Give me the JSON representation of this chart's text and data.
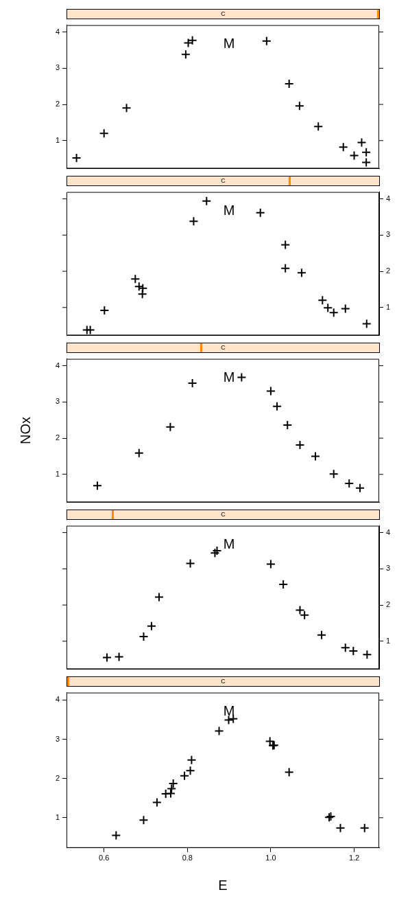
{
  "chart_data": [
    {
      "type": "scatter",
      "title": "C",
      "x": [
        0.534,
        0.6,
        0.654,
        0.796,
        0.802,
        0.812,
        0.99,
        1.044,
        1.069,
        1.114,
        1.174,
        1.2,
        1.218,
        1.229,
        1.229
      ],
      "values": [
        0.52,
        1.2,
        1.9,
        3.38,
        3.7,
        3.77,
        3.75,
        2.57,
        1.96,
        1.39,
        0.82,
        0.59,
        0.95,
        0.68,
        0.4
      ],
      "color": "#000000",
      "marker": "cross",
      "xlim": [
        0.51,
        1.26
      ],
      "ylim": [
        0.23,
        4.19
      ],
      "yticks": [
        1,
        2,
        3,
        4
      ],
      "tick_labels": "y",
      "grid": false,
      "legend": false,
      "annotations": [
        "M"
      ]
    },
    {
      "type": "scatter",
      "title": "C",
      "x": [
        0.559,
        0.567,
        0.601,
        0.675,
        0.684,
        0.693,
        0.692,
        0.815,
        0.846,
        0.975,
        1.035,
        1.035,
        1.074,
        1.124,
        1.137,
        1.151,
        1.179,
        1.23
      ],
      "values": [
        0.38,
        0.38,
        0.92,
        1.79,
        1.58,
        1.53,
        1.37,
        3.38,
        3.94,
        3.62,
        2.73,
        2.08,
        1.96,
        1.2,
        0.99,
        0.86,
        0.97,
        0.55
      ],
      "color": "#000000",
      "marker": "cross",
      "xlim": [
        0.51,
        1.26
      ],
      "ylim": [
        0.23,
        4.19
      ],
      "yticks": [
        1,
        2,
        3,
        4
      ],
      "tick_labels": "y",
      "grid": false,
      "legend": false,
      "annotations": [
        "M"
      ]
    },
    {
      "type": "scatter",
      "title": "C",
      "ylabel": "NOx",
      "x": [
        0.584,
        0.684,
        0.759,
        0.812,
        0.93,
        1.0,
        1.015,
        1.04,
        1.07,
        1.107,
        1.151,
        1.188,
        1.214
      ],
      "values": [
        0.69,
        1.59,
        2.31,
        3.52,
        3.68,
        3.3,
        2.88,
        2.36,
        1.81,
        1.5,
        1.01,
        0.75,
        0.62
      ],
      "color": "#000000",
      "marker": "cross",
      "xlim": [
        0.51,
        1.26
      ],
      "ylim": [
        0.23,
        4.19
      ],
      "yticks": [
        1,
        2,
        3,
        4
      ],
      "tick_labels": "y",
      "grid": false,
      "legend": false,
      "annotations": [
        "M"
      ]
    },
    {
      "type": "scatter",
      "title": "C",
      "x": [
        0.607,
        0.636,
        0.695,
        0.714,
        0.732,
        0.807,
        0.866,
        0.871,
        1.0,
        1.03,
        1.07,
        1.081,
        1.122,
        1.179,
        1.198,
        1.231
      ],
      "values": [
        0.55,
        0.57,
        1.13,
        1.42,
        2.22,
        3.15,
        3.44,
        3.5,
        3.13,
        2.57,
        1.86,
        1.72,
        1.17,
        0.82,
        0.73,
        0.63
      ],
      "color": "#000000",
      "marker": "cross",
      "xlim": [
        0.51,
        1.26
      ],
      "ylim": [
        0.23,
        4.19
      ],
      "yticks": [
        1,
        2,
        3,
        4
      ],
      "tick_labels": "y",
      "grid": false,
      "legend": false,
      "annotations": [
        "M"
      ]
    },
    {
      "type": "scatter",
      "title": "C",
      "xlabel": "E",
      "x": [
        0.629,
        0.695,
        0.727,
        0.748,
        0.76,
        0.762,
        0.766,
        0.793,
        0.807,
        0.81,
        0.876,
        0.899,
        0.91,
        0.998,
        1.005,
        1.008,
        1.044,
        1.14,
        1.144,
        1.167,
        1.225
      ],
      "values": [
        0.55,
        0.94,
        1.39,
        1.61,
        1.62,
        1.74,
        1.87,
        2.07,
        2.2,
        2.47,
        3.21,
        3.49,
        3.52,
        2.95,
        2.84,
        2.85,
        2.16,
        1.01,
        1.03,
        0.74,
        0.74
      ],
      "color": "#000000",
      "marker": "cross",
      "xlim": [
        0.51,
        1.26
      ],
      "ylim": [
        0.23,
        4.19
      ],
      "xticks": [
        0.6,
        0.8,
        {
          "value": 1,
          "label": "1.0"
        },
        1.2
      ],
      "yticks": [
        1,
        2,
        3,
        4
      ],
      "grid": false,
      "legend": false,
      "annotations": [
        "M"
      ]
    }
  ]
}
